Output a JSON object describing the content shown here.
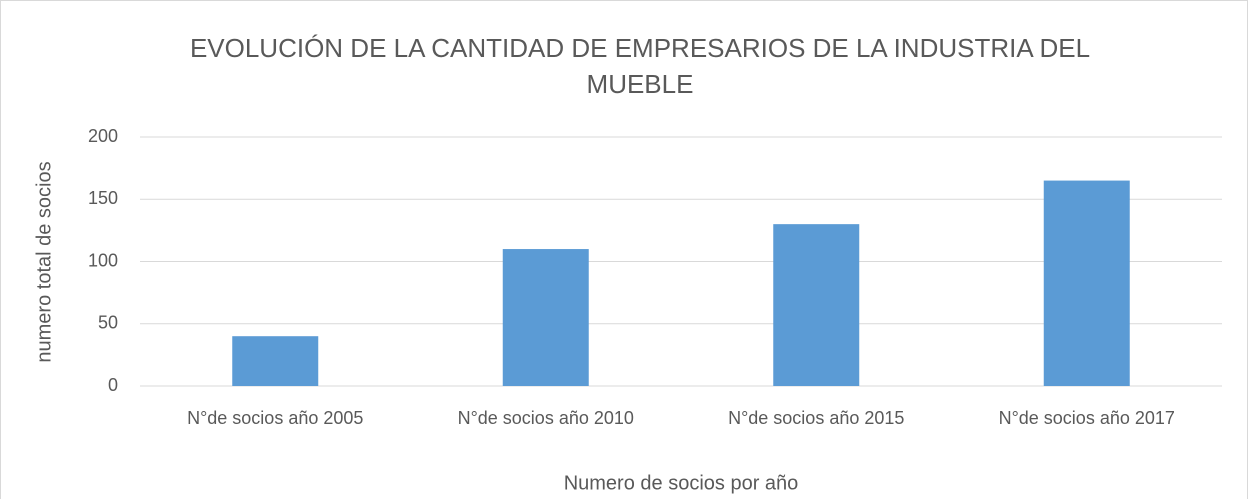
{
  "chart_data": {
    "type": "bar",
    "title": "EVOLUCIÓN DE LA CANTIDAD DE EMPRESARIOS DE LA INDUSTRIA DEL MUEBLE",
    "x_label": "Numero de socios por año",
    "y_label": "numero total de socios",
    "categories": [
      "N°de socios año 2005",
      "N°de socios año 2010",
      "N°de socios año 2015",
      "N°de socios año 2017"
    ],
    "values": [
      40,
      110,
      130,
      165
    ],
    "color": "#5b9bd5",
    "ylim": [
      0,
      200
    ],
    "yticks": [
      0,
      50,
      100,
      150,
      200
    ],
    "grid": true
  }
}
